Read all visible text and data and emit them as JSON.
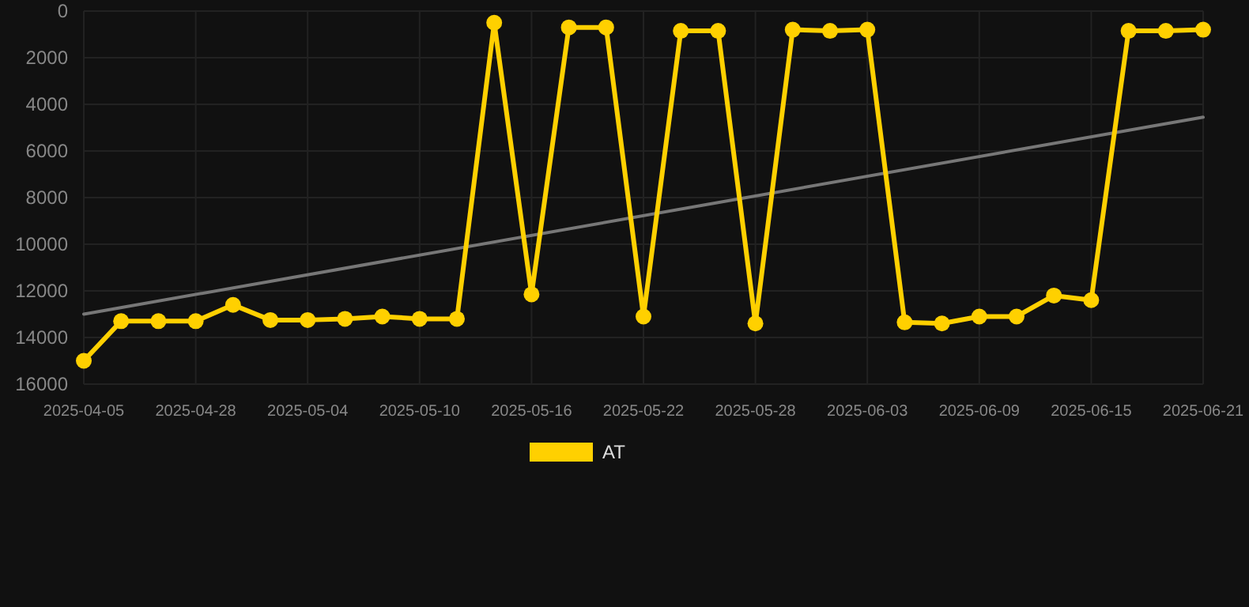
{
  "chart_data": {
    "type": "line",
    "categories": [
      "2025-04-05",
      null,
      null,
      "2025-04-28",
      null,
      null,
      "2025-05-04",
      null,
      null,
      "2025-05-10",
      null,
      null,
      "2025-05-16",
      null,
      null,
      "2025-05-22",
      null,
      null,
      "2025-05-28",
      null,
      null,
      "2025-06-03",
      null,
      null,
      "2025-06-09",
      null,
      null,
      "2025-06-15",
      null,
      null,
      "2025-06-21"
    ],
    "series": [
      {
        "name": "AT",
        "color": "#ffd000",
        "marker": "circle",
        "values": [
          15000,
          13300,
          13300,
          13300,
          12600,
          13250,
          13250,
          13200,
          13100,
          13200,
          13200,
          500,
          12150,
          700,
          700,
          13100,
          850,
          850,
          13400,
          800,
          850,
          800,
          13350,
          13400,
          13100,
          13100,
          12200,
          12400,
          850,
          850,
          800
        ]
      },
      {
        "color": "#777777",
        "marker": "none",
        "values": [
          13000,
          null,
          null,
          null,
          null,
          null,
          null,
          null,
          null,
          null,
          null,
          null,
          null,
          null,
          null,
          null,
          null,
          null,
          null,
          null,
          null,
          null,
          null,
          null,
          null,
          null,
          null,
          null,
          null,
          null,
          4550
        ]
      }
    ],
    "ylim": [
      16000,
      0
    ],
    "yticks": [
      0,
      2000,
      4000,
      6000,
      8000,
      10000,
      12000,
      14000,
      16000
    ],
    "grid": true,
    "legend": "bottom",
    "line_style": "solid"
  }
}
